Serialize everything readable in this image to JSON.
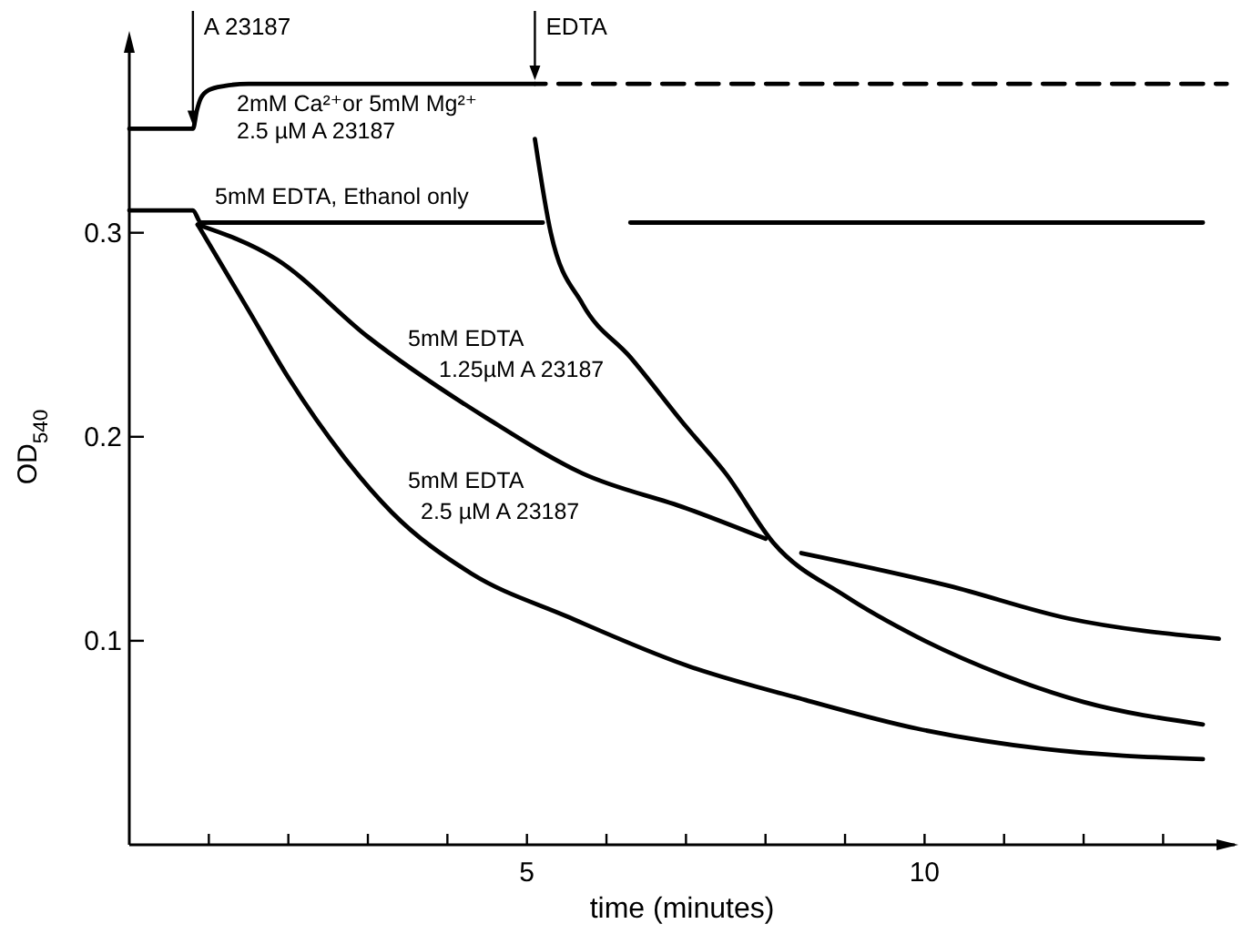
{
  "chart_data": {
    "type": "line",
    "xlabel": "time (minutes)",
    "ylabel": "OD$_{540}$",
    "xlim": [
      0,
      13.9
    ],
    "ylim": [
      0,
      0.39
    ],
    "xticks": [
      {
        "value": 1,
        "label": null
      },
      {
        "value": 2,
        "label": null
      },
      {
        "value": 3,
        "label": null
      },
      {
        "value": 4,
        "label": null
      },
      5,
      {
        "value": 6,
        "label": null
      },
      {
        "value": 7,
        "label": null
      },
      {
        "value": 8,
        "label": null
      },
      {
        "value": 9,
        "label": null
      },
      10,
      {
        "value": 11,
        "label": null
      },
      {
        "value": 12,
        "label": null
      },
      {
        "value": 13,
        "label": null
      }
    ],
    "yticks": [
      0.1,
      0.2,
      0.3
    ],
    "grid": false,
    "marker": "none",
    "series": [
      {
        "color": "#000000",
        "x": [
          0,
          0.8,
          0.85,
          0.9,
          1.0,
          1.2,
          1.5,
          5.1
        ],
        "values": [
          0.351,
          0.351,
          0.36,
          0.366,
          0.37,
          0.372,
          0.373,
          0.373
        ]
      },
      {
        "color": "#000000",
        "line_style": "dashed",
        "x": [
          5.1,
          13.8
        ],
        "values": [
          0.373,
          0.373
        ]
      },
      {
        "color": "#000000",
        "x": [
          5.1,
          5.3,
          5.7,
          6.3,
          7.0,
          7.5,
          8.1,
          9.0,
          9.9,
          11.0,
          12.0,
          13.5
        ],
        "values": [
          0.346,
          0.3,
          0.265,
          0.239,
          0.205,
          0.182,
          0.148,
          0.122,
          0.102,
          0.083,
          0.07,
          0.059
        ]
      },
      {
        "color": "#000000",
        "x": [
          0,
          0.8,
          0.9,
          5.2,
          5.25,
          6.3,
          13.5
        ],
        "values": [
          0.311,
          0.311,
          0.305,
          0.305,
          null,
          0.305,
          0.305
        ]
      },
      {
        "color": "#000000",
        "x": [
          0.86,
          1.85,
          3.0,
          4.5,
          5.7,
          7.0,
          8.0,
          8.2,
          8.45,
          10.3,
          11.8,
          13.7
        ],
        "values": [
          0.304,
          0.287,
          0.249,
          0.209,
          0.182,
          0.165,
          0.15,
          null,
          0.143,
          0.127,
          0.111,
          0.101
        ]
      },
      {
        "color": "#000000",
        "x": [
          0.86,
          1.5,
          2.0,
          2.7,
          3.3,
          4.3,
          5.5,
          7.0,
          8.5,
          9.9,
          11.5,
          13.5
        ],
        "values": [
          0.304,
          0.262,
          0.229,
          0.19,
          0.163,
          0.133,
          0.112,
          0.088,
          0.071,
          0.057,
          0.047,
          0.042
        ]
      }
    ],
    "annotations": [
      {
        "text": "A 23187",
        "x": 0.8,
        "y": 0.351
      },
      {
        "text": "EDTA",
        "x": 5.1,
        "y": 0.373
      },
      "2mM Ca²⁺or 5mM Mg²⁺",
      "2.5 µM  A 23187",
      "5mM EDTA, Ethanol only",
      "5mM EDTA",
      "1.25µM A 23187",
      "5mM EDTA",
      "2.5 µM  A 23187"
    ]
  }
}
